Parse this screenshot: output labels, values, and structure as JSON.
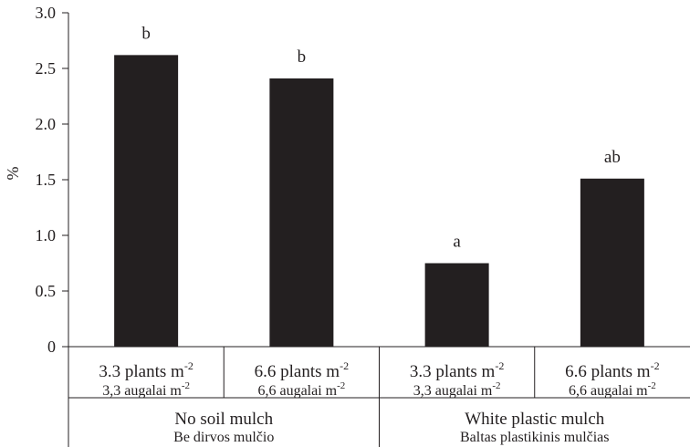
{
  "chart_data": {
    "type": "bar",
    "ylabel": "%",
    "ylim": [
      0,
      3.0
    ],
    "yticks": [
      "0",
      "0.5",
      "1.0",
      "1.5",
      "2.0",
      "2.5",
      "3.0"
    ],
    "ytick_values": [
      0,
      0.5,
      1.0,
      1.5,
      2.0,
      2.5,
      3.0
    ],
    "grid": false,
    "bar_color": "#231f20",
    "categories": [
      {
        "line1": "3.3 plants m",
        "sup1": "-2",
        "line2": "3,3 augalai m",
        "sup2": "-2"
      },
      {
        "line1": "6.6 plants m",
        "sup1": "-2",
        "line2": "6,6 augalai m",
        "sup2": "-2"
      },
      {
        "line1": "3.3 plants m",
        "sup1": "-2",
        "line2": "3,3 augalai m",
        "sup2": "-2"
      },
      {
        "line1": "6.6 plants m",
        "sup1": "-2",
        "line2": "6,6 augalai m",
        "sup2": "-2"
      }
    ],
    "values": [
      2.62,
      2.41,
      0.75,
      1.51
    ],
    "significance_labels": [
      "b",
      "b",
      "a",
      "ab"
    ],
    "groups": [
      {
        "line1": "No soil mulch",
        "line2": "Be dirvos mulčio"
      },
      {
        "line1": "White plastic mulch",
        "line2": "Baltas plastikinis mulčias"
      }
    ]
  }
}
